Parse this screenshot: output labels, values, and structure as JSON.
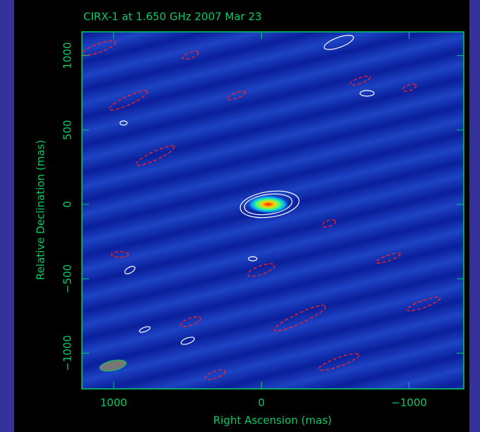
{
  "chart_data": {
    "type": "image",
    "title": "CIRX-1 at 1.650 GHz 2007 Mar 23",
    "x_label": "Right Ascension  (mas)",
    "y_label": "Relative Declination  (mas)",
    "xlim": [
      1215,
      -1370
    ],
    "ylim": [
      -1240,
      1160
    ],
    "xticks": [
      1000,
      0,
      {
        "value": -1000,
        "label": "−1000"
      }
    ],
    "yticks": [
      {
        "value": -1000,
        "label": "−1000"
      },
      {
        "value": -500,
        "label": "−500"
      },
      0,
      500,
      1000
    ],
    "color": "#00cc66"
  }
}
